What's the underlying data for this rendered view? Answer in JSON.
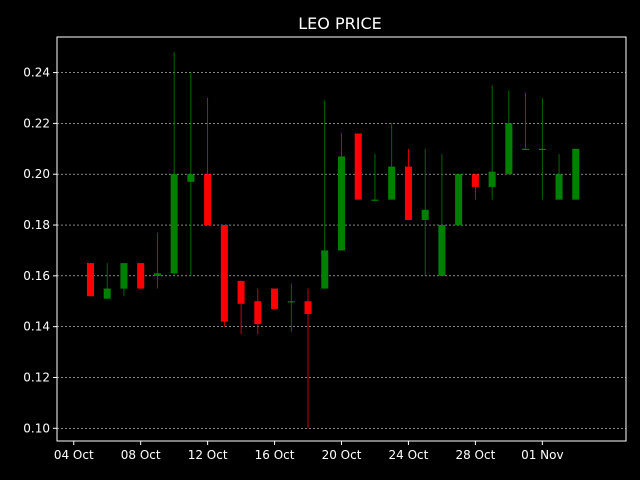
{
  "chart_data": {
    "type": "candlestick",
    "title": "LEO PRICE",
    "xlabel": "",
    "ylabel": "",
    "ylim": [
      0.095,
      0.254
    ],
    "xlim_dates": [
      "2021-10-03",
      "2021-11-06"
    ],
    "grid": {
      "y": true,
      "x": false,
      "style": "dashed"
    },
    "colors": {
      "background": "#000000",
      "up": "#008000",
      "down": "#ff0000",
      "axis": "#ffffff",
      "grid": "#ffffff"
    },
    "y_ticks": [
      "0.10",
      "0.12",
      "0.14",
      "0.16",
      "0.18",
      "0.20",
      "0.22",
      "0.24"
    ],
    "x_ticks": [
      {
        "date": "2021-10-04",
        "label": "04 Oct"
      },
      {
        "date": "2021-10-08",
        "label": "08 Oct"
      },
      {
        "date": "2021-10-12",
        "label": "12 Oct"
      },
      {
        "date": "2021-10-16",
        "label": "16 Oct"
      },
      {
        "date": "2021-10-20",
        "label": "20 Oct"
      },
      {
        "date": "2021-10-24",
        "label": "24 Oct"
      },
      {
        "date": "2021-10-28",
        "label": "28 Oct"
      },
      {
        "date": "2021-11-01",
        "label": "01 Nov"
      }
    ],
    "candles": [
      {
        "date": "2021-10-05",
        "open": 0.165,
        "high": 0.165,
        "low": 0.152,
        "close": 0.152
      },
      {
        "date": "2021-10-06",
        "open": 0.151,
        "high": 0.165,
        "low": 0.151,
        "close": 0.155
      },
      {
        "date": "2021-10-07",
        "open": 0.155,
        "high": 0.165,
        "low": 0.152,
        "close": 0.165
      },
      {
        "date": "2021-10-08",
        "open": 0.165,
        "high": 0.165,
        "low": 0.155,
        "close": 0.155
      },
      {
        "date": "2021-10-09",
        "open": 0.16,
        "high": 0.177,
        "low": 0.155,
        "close": 0.161
      },
      {
        "date": "2021-10-10",
        "open": 0.161,
        "high": 0.248,
        "low": 0.16,
        "close": 0.2
      },
      {
        "date": "2021-10-11",
        "open": 0.197,
        "high": 0.24,
        "low": 0.16,
        "close": 0.2
      },
      {
        "date": "2021-10-12",
        "open": 0.2,
        "high": 0.23,
        "low": 0.18,
        "close": 0.18
      },
      {
        "date": "2021-10-13",
        "open": 0.18,
        "high": 0.18,
        "low": 0.14,
        "close": 0.142
      },
      {
        "date": "2021-10-14",
        "open": 0.158,
        "high": 0.158,
        "low": 0.137,
        "close": 0.149
      },
      {
        "date": "2021-10-15",
        "open": 0.15,
        "high": 0.155,
        "low": 0.137,
        "close": 0.141
      },
      {
        "date": "2021-10-16",
        "open": 0.155,
        "high": 0.155,
        "low": 0.147,
        "close": 0.147
      },
      {
        "date": "2021-10-17",
        "open": 0.15,
        "high": 0.157,
        "low": 0.138,
        "close": 0.15
      },
      {
        "date": "2021-10-18",
        "open": 0.15,
        "high": 0.155,
        "low": 0.1,
        "close": 0.145
      },
      {
        "date": "2021-10-19",
        "open": 0.155,
        "high": 0.229,
        "low": 0.155,
        "close": 0.17
      },
      {
        "date": "2021-10-20",
        "open": 0.17,
        "high": 0.216,
        "low": 0.17,
        "close": 0.207
      },
      {
        "date": "2021-10-21",
        "open": 0.216,
        "high": 0.216,
        "low": 0.19,
        "close": 0.19
      },
      {
        "date": "2021-10-22",
        "open": 0.19,
        "high": 0.208,
        "low": 0.19,
        "close": 0.19
      },
      {
        "date": "2021-10-23",
        "open": 0.19,
        "high": 0.22,
        "low": 0.19,
        "close": 0.203
      },
      {
        "date": "2021-10-24",
        "open": 0.203,
        "high": 0.21,
        "low": 0.182,
        "close": 0.182
      },
      {
        "date": "2021-10-25",
        "open": 0.182,
        "high": 0.21,
        "low": 0.16,
        "close": 0.186
      },
      {
        "date": "2021-10-26",
        "open": 0.16,
        "high": 0.208,
        "low": 0.16,
        "close": 0.18
      },
      {
        "date": "2021-10-27",
        "open": 0.18,
        "high": 0.2,
        "low": 0.18,
        "close": 0.2
      },
      {
        "date": "2021-10-28",
        "open": 0.2,
        "high": 0.2,
        "low": 0.19,
        "close": 0.195
      },
      {
        "date": "2021-10-29",
        "open": 0.195,
        "high": 0.235,
        "low": 0.19,
        "close": 0.201
      },
      {
        "date": "2021-10-30",
        "open": 0.2,
        "high": 0.233,
        "low": 0.2,
        "close": 0.22
      },
      {
        "date": "2021-10-31",
        "open": 0.21,
        "high": 0.232,
        "low": 0.21,
        "close": 0.21
      },
      {
        "date": "2021-11-01",
        "open": 0.21,
        "high": 0.23,
        "low": 0.19,
        "close": 0.21
      },
      {
        "date": "2021-11-02",
        "open": 0.19,
        "high": 0.208,
        "low": 0.19,
        "close": 0.2
      },
      {
        "date": "2021-11-03",
        "open": 0.19,
        "high": 0.21,
        "low": 0.19,
        "close": 0.21
      }
    ]
  }
}
